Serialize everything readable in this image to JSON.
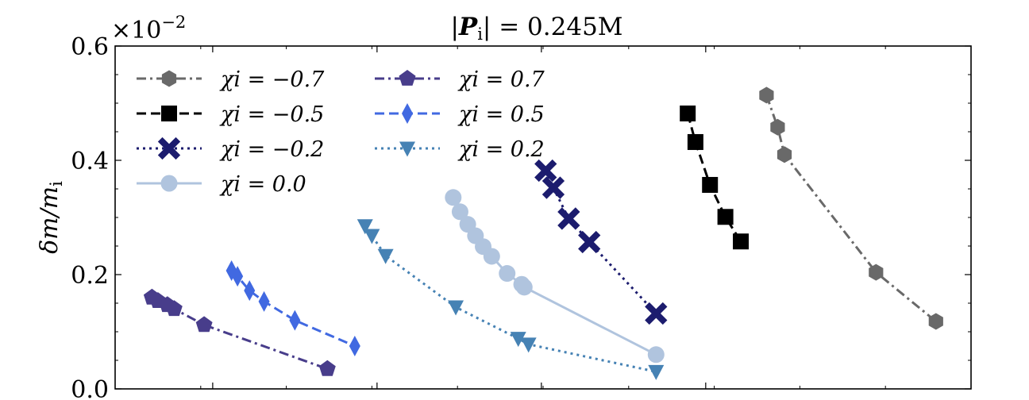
{
  "chart_data": {
    "type": "line",
    "title": "|P_i| = 0.245M",
    "xlabel": "",
    "ylabel": "δm/m_i",
    "y_offset_label": "×10^-2",
    "ylim": [
      0.0,
      0.6
    ],
    "xlim": [
      0.0,
      1.0
    ],
    "y_ticks": [
      "0.0",
      "0.2",
      "0.4",
      "0.6"
    ],
    "grid": false,
    "legend_position": "top-left",
    "series": [
      {
        "name": "χi = −0.7",
        "color": "#696969",
        "marker": "hexagon",
        "linestyle": "dashdot",
        "x": [
          0.761,
          0.774,
          0.782,
          0.889,
          0.959
        ],
        "y": [
          0.514,
          0.458,
          0.41,
          0.204,
          0.118
        ]
      },
      {
        "name": "χi = −0.5",
        "color": "#000000",
        "marker": "square",
        "linestyle": "dashed",
        "x": [
          0.669,
          0.678,
          0.695,
          0.713,
          0.731
        ],
        "y": [
          0.482,
          0.432,
          0.357,
          0.301,
          0.258
        ]
      },
      {
        "name": "χi = −0.2",
        "color": "#1c1c6e",
        "marker": "x",
        "linestyle": "dotted",
        "x": [
          0.503,
          0.512,
          0.53,
          0.554,
          0.632
        ],
        "y": [
          0.382,
          0.352,
          0.298,
          0.257,
          0.132
        ]
      },
      {
        "name": "χi = 0.0",
        "color": "#b0c4de",
        "marker": "circle",
        "linestyle": "solid",
        "x": [
          0.395,
          0.403,
          0.412,
          0.421,
          0.43,
          0.44,
          0.458,
          0.475,
          0.478,
          0.632
        ],
        "y": [
          0.335,
          0.31,
          0.288,
          0.268,
          0.249,
          0.232,
          0.202,
          0.183,
          0.178,
          0.06
        ]
      },
      {
        "name": "χi = 0.7",
        "color": "#483d8b",
        "marker": "pentagon",
        "linestyle": "dashdot",
        "x": [
          0.043,
          0.05,
          0.061,
          0.069,
          0.104,
          0.248
        ],
        "y": [
          0.16,
          0.154,
          0.147,
          0.14,
          0.112,
          0.035
        ]
      },
      {
        "name": "χi = 0.5",
        "color": "#4169e1",
        "marker": "thin_diamond",
        "linestyle": "dashed",
        "x": [
          0.136,
          0.143,
          0.157,
          0.174,
          0.21,
          0.28
        ],
        "y": [
          0.207,
          0.197,
          0.172,
          0.153,
          0.12,
          0.075
        ]
      },
      {
        "name": "χi = 0.2",
        "color": "#4682b4",
        "marker": "triangle_down",
        "linestyle": "dotted",
        "x": [
          0.292,
          0.3,
          0.316,
          0.398,
          0.471,
          0.483,
          0.632
        ],
        "y": [
          0.285,
          0.268,
          0.233,
          0.143,
          0.088,
          0.078,
          0.03
        ]
      }
    ]
  }
}
